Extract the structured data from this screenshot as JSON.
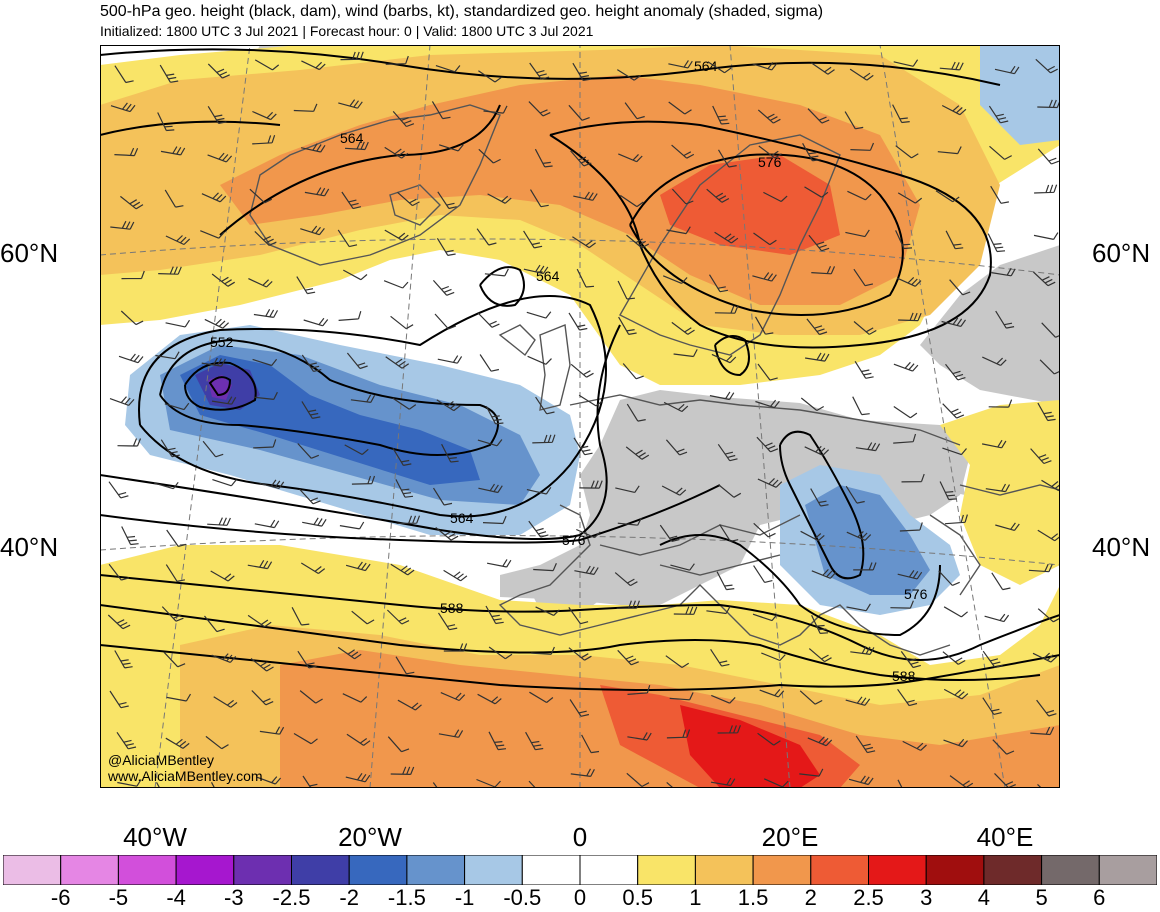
{
  "header": {
    "title": "500-hPa geo. height (black, dam), wind (barbs, kt), standardized geo. height anomaly (shaded, sigma)",
    "subtitle": "Initialized: 1800 UTC 3 Jul 2021 | Forecast hour: 0 | Valid: 1800 UTC 3 Jul 2021"
  },
  "map": {
    "latitude_labels": [
      {
        "label": "60°N",
        "side": "left"
      },
      {
        "label": "40°N",
        "side": "left"
      },
      {
        "label": "60°N",
        "side": "right"
      },
      {
        "label": "40°N",
        "side": "right"
      }
    ],
    "longitude_labels": [
      "40°W",
      "20°W",
      "0",
      "20°E",
      "40°E"
    ],
    "contour_labels": [
      "564",
      "564",
      "576",
      "564",
      "552",
      "564",
      "576",
      "588",
      "576",
      "588"
    ],
    "land_color": "#c8c8c8",
    "coast_color": "#555555",
    "contour_color": "#000000"
  },
  "credits": {
    "handle": "@AliciaMBentley",
    "website": "www.AliciaMBentley.com"
  },
  "colorbar": {
    "ticks": [
      "-6",
      "-5",
      "-4",
      "-3",
      "-2.5",
      "-2",
      "-1.5",
      "-1",
      "-0.5",
      "0",
      "0.5",
      "1",
      "1.5",
      "2",
      "2.5",
      "3",
      "4",
      "5",
      "6"
    ],
    "colors": [
      "#ebbde6",
      "#e586e4",
      "#d24fdb",
      "#a617cf",
      "#6d2fb0",
      "#3f3ea7",
      "#3768be",
      "#6693cc",
      "#a7c8e6",
      "#ffffff",
      "#ffffff",
      "#f9e468",
      "#f4c25a",
      "#f1974c",
      "#ee5b35",
      "#e41818",
      "#a00e0e",
      "#6e2a2a",
      "#74696a",
      "#a89e9f"
    ]
  }
}
